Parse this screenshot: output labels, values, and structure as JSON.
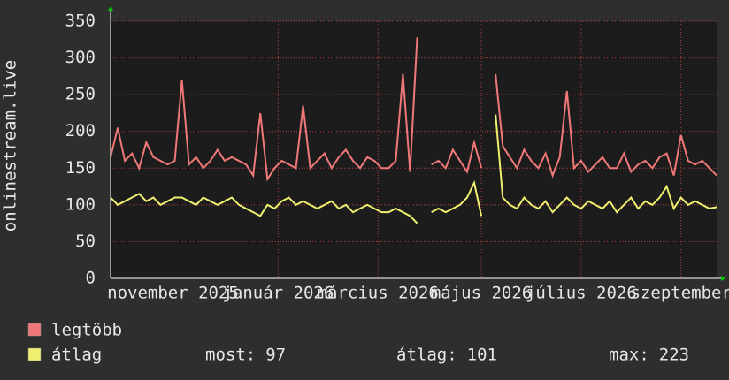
{
  "chart_data": {
    "type": "line",
    "ylabel": "onlinestream.live",
    "x": [
      0,
      1,
      2,
      3,
      4,
      5,
      6,
      7,
      8,
      9,
      10,
      11,
      12,
      13,
      14,
      15,
      16,
      17,
      18,
      19,
      20,
      21,
      22,
      23,
      24,
      25,
      26,
      27,
      28,
      29,
      30,
      31,
      32,
      33,
      34,
      35,
      36,
      37,
      38,
      39,
      40,
      41,
      42,
      43,
      44,
      45,
      46,
      47,
      48,
      49,
      50,
      51,
      52,
      53,
      54,
      55,
      56,
      57,
      58,
      59,
      60,
      61,
      62,
      63,
      64,
      65,
      66,
      67,
      68,
      69,
      70,
      71,
      72,
      73,
      74,
      75,
      76,
      77,
      78,
      79,
      80,
      81,
      82,
      83,
      84,
      85
    ],
    "xlim": [
      0,
      85
    ],
    "xticks": [
      {
        "value": 8.75,
        "label": "november 2025"
      },
      {
        "value": 23.5,
        "label": "január 2026"
      },
      {
        "value": 37.5,
        "label": "március 2026"
      },
      {
        "value": 52,
        "label": "május 2026"
      },
      {
        "value": 66,
        "label": "július 2026"
      },
      {
        "value": 80,
        "label": "szeptember"
      }
    ],
    "ylim": [
      0,
      350
    ],
    "yticks": [
      0,
      50,
      100,
      150,
      200,
      250,
      300,
      350
    ],
    "grid": true,
    "series": [
      {
        "name": "legtöbb",
        "color": "#f07878",
        "values": [
          165,
          205,
          160,
          170,
          150,
          185,
          165,
          160,
          155,
          160,
          270,
          155,
          165,
          150,
          160,
          175,
          160,
          165,
          160,
          155,
          140,
          225,
          135,
          150,
          160,
          155,
          150,
          235,
          150,
          160,
          170,
          150,
          165,
          175,
          160,
          150,
          165,
          160,
          150,
          150,
          160,
          278,
          145,
          328,
          null,
          155,
          160,
          150,
          175,
          160,
          145,
          185,
          150,
          null,
          278,
          180,
          165,
          150,
          175,
          160,
          150,
          170,
          140,
          165,
          255,
          150,
          160,
          145,
          155,
          165,
          150,
          150,
          170,
          145,
          155,
          160,
          150,
          165,
          170,
          140,
          195,
          160,
          155,
          160,
          150,
          140
        ]
      },
      {
        "name": "átlag",
        "color": "#f0f070",
        "values": [
          110,
          100,
          105,
          110,
          115,
          105,
          110,
          100,
          105,
          110,
          110,
          105,
          100,
          110,
          105,
          100,
          105,
          110,
          100,
          95,
          90,
          85,
          100,
          95,
          105,
          110,
          100,
          105,
          100,
          95,
          100,
          105,
          95,
          100,
          90,
          95,
          100,
          95,
          90,
          90,
          95,
          90,
          85,
          75,
          null,
          90,
          95,
          90,
          95,
          100,
          110,
          130,
          85,
          null,
          223,
          110,
          100,
          95,
          110,
          100,
          95,
          105,
          90,
          100,
          110,
          100,
          95,
          105,
          100,
          95,
          105,
          90,
          100,
          110,
          95,
          105,
          100,
          110,
          125,
          95,
          110,
          100,
          105,
          100,
          95,
          97
        ]
      }
    ],
    "stats": [
      {
        "label": "most:",
        "value": 97
      },
      {
        "label": "átlag:",
        "value": 101
      },
      {
        "label": "max:",
        "value": 223
      }
    ]
  }
}
